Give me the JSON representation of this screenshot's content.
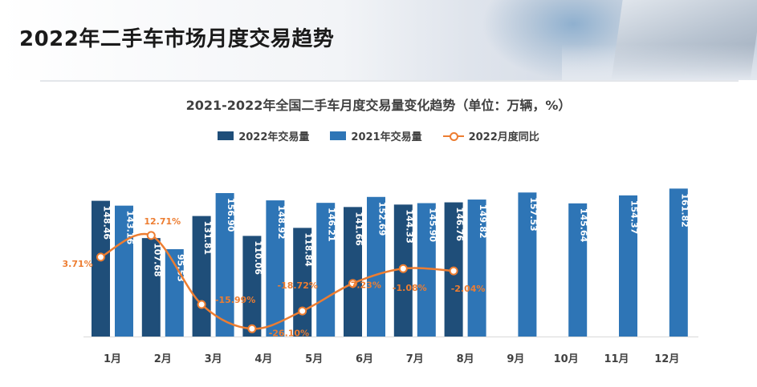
{
  "header": {
    "title": "2022年二手车市场月度交易趋势"
  },
  "colors": {
    "series_2022": "#1f4e79",
    "series_2021": "#2e75b6",
    "yoy_line": "#ed7d31"
  },
  "chart_data": {
    "type": "bar",
    "title": "2021-2022年全国二手车月度交易量变化趋势（单位：万辆，%）",
    "xlabel": "",
    "ylabel": "",
    "categories": [
      "1月",
      "2月",
      "3月",
      "4月",
      "5月",
      "6月",
      "7月",
      "8月",
      "9月",
      "10月",
      "11月",
      "12月"
    ],
    "series": [
      {
        "name": "2022年交易量",
        "type": "bar",
        "values": [
          148.46,
          107.68,
          131.81,
          110.06,
          118.84,
          141.66,
          144.33,
          146.76,
          null,
          null,
          null,
          null
        ]
      },
      {
        "name": "2021年交易量",
        "type": "bar",
        "values": [
          143.16,
          95.53,
          156.9,
          148.92,
          146.21,
          152.69,
          145.9,
          149.82,
          157.53,
          145.64,
          154.37,
          161.82
        ]
      },
      {
        "name": "2022月度同比",
        "type": "line",
        "values": [
          3.71,
          12.71,
          -15.99,
          -26.1,
          -18.72,
          -7.23,
          -1.08,
          -2.04,
          null,
          null,
          null,
          null
        ]
      }
    ],
    "value_labels": [
      "148.46",
      "107.68",
      "131.81",
      "110.06",
      "118.84",
      "141.66",
      "144.33",
      "146.76"
    ],
    "value_labels_2021": [
      "143.16",
      "95.53",
      "156.90",
      "148.92",
      "146.21",
      "152.69",
      "145.90",
      "149.82",
      "157.53",
      "145.64",
      "154.37",
      "161.82"
    ],
    "pct_labels": [
      "3.71%",
      "12.71%",
      "-15.99%",
      "-26.10%",
      "-18.72%",
      "-7.23%",
      "-1.08%",
      "-2.04%"
    ],
    "legend_position": "top",
    "grid": false
  }
}
